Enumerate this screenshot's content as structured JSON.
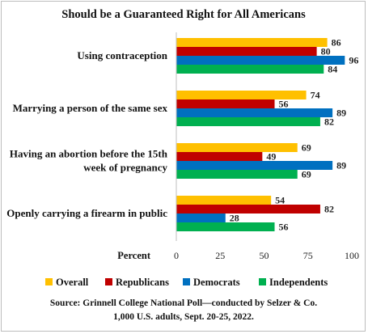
{
  "chart_data": {
    "type": "bar",
    "orientation": "horizontal",
    "title": "Should be a Guaranteed Right for All Americans",
    "categories": [
      [
        "Using contraception"
      ],
      [
        "Marrying a person of the same sex"
      ],
      [
        "Having an abortion before the 15th",
        "week of pregnancy"
      ],
      [
        "Openly carrying a firearm in public"
      ]
    ],
    "series": [
      {
        "name": "Overall",
        "color": "#FFC000",
        "values": [
          86,
          74,
          69,
          54
        ]
      },
      {
        "name": "Republicans",
        "color": "#C00000",
        "values": [
          80,
          56,
          49,
          82
        ]
      },
      {
        "name": "Democrats",
        "color": "#0070C0",
        "values": [
          96,
          89,
          89,
          28
        ]
      },
      {
        "name": "Independents",
        "color": "#00B050",
        "values": [
          84,
          82,
          69,
          56
        ]
      }
    ],
    "xlabel": "Percent",
    "xlim": [
      0,
      100
    ],
    "xticks": [
      "0",
      "25",
      "50",
      "75",
      "100"
    ],
    "grid": false,
    "legend_position": "bottom",
    "source_lines": [
      "Source: Grinnell College National Poll—conducted by Selzer & Co.",
      "1,000 U.S. adults, Sept. 20-25, 2022."
    ]
  }
}
